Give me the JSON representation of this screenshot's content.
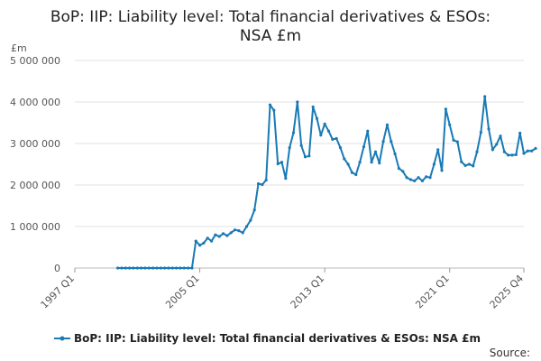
{
  "chart_data": {
    "type": "line",
    "title_lines": [
      "BoP: IIP: Liability level: Total financial derivatives & ESOs:",
      "NSA £m"
    ],
    "unit_label": "£m",
    "ylim": [
      0,
      5000000
    ],
    "y_ticks": [
      0,
      1000000,
      2000000,
      3000000,
      4000000,
      5000000
    ],
    "y_tick_labels": [
      "0",
      "1 000 000",
      "2 000 000",
      "3 000 000",
      "4 000 000",
      "5 000 000"
    ],
    "x_range": [
      "1997 Q1",
      "2025 Q4"
    ],
    "x_tick_labels": [
      "1997 Q1",
      "2005 Q1",
      "2013 Q1",
      "2021 Q1",
      "2025 Q4"
    ],
    "x_start_year": 1997,
    "series": [
      {
        "name": "BoP: IIP: Liability level: Total financial derivatives & ESOs: NSA £m",
        "color": "#1a7ab5",
        "start": "1999 Q4",
        "values": [
          0,
          0,
          0,
          0,
          0,
          0,
          0,
          0,
          0,
          0,
          0,
          0,
          0,
          0,
          0,
          0,
          0,
          0,
          0,
          0,
          650000,
          550000,
          600000,
          720000,
          650000,
          800000,
          760000,
          830000,
          780000,
          850000,
          920000,
          900000,
          850000,
          1000000,
          1150000,
          1400000,
          2030000,
          2010000,
          2120000,
          3930000,
          3800000,
          2510000,
          2550000,
          2160000,
          2900000,
          3260000,
          4000000,
          2950000,
          2680000,
          2700000,
          3880000,
          3600000,
          3200000,
          3470000,
          3300000,
          3100000,
          3120000,
          2900000,
          2630000,
          2500000,
          2300000,
          2250000,
          2550000,
          2920000,
          3300000,
          2550000,
          2800000,
          2530000,
          3050000,
          3450000,
          3050000,
          2750000,
          2400000,
          2330000,
          2180000,
          2130000,
          2100000,
          2180000,
          2100000,
          2200000,
          2180000,
          2500000,
          2850000,
          2350000,
          3830000,
          3450000,
          3080000,
          3040000,
          2560000,
          2470000,
          2500000,
          2460000,
          2800000,
          3270000,
          4130000,
          3350000,
          2850000,
          2980000,
          3180000,
          2800000,
          2720000,
          2720000,
          2730000,
          3250000,
          2760000,
          2820000,
          2820000,
          2880000
        ]
      }
    ]
  },
  "legend": {
    "label": "BoP: IIP: Liability level: Total financial derivatives & ESOs: NSA £m"
  },
  "source": {
    "label": "Source:"
  }
}
